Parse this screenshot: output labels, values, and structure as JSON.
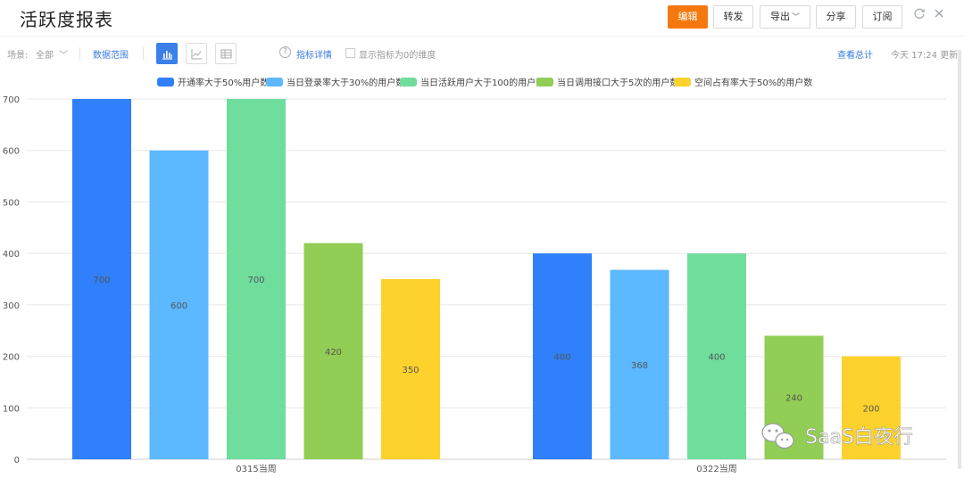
{
  "header": {
    "title": "活跃度报表",
    "buttons": {
      "edit": "编辑",
      "forward": "转发",
      "export": "导出",
      "share": "分享",
      "subscribe": "订阅"
    },
    "icons": [
      "refresh-icon",
      "close-icon"
    ],
    "accent_color": "#f5780f"
  },
  "toolbar": {
    "scene_label": "场景:",
    "scene_value": "全部",
    "data_range": "数据范围",
    "metric_detail": "指标详情",
    "show_zero": "显示指标为0的维度",
    "view_total": "查看总计",
    "updated": "今天 17:24 更新",
    "view_modes": [
      "bar-chart-icon",
      "line-chart-icon",
      "table-icon"
    ],
    "active_view": "bar"
  },
  "chart_data": {
    "type": "bar",
    "categories": [
      "0315当周",
      "0322当周"
    ],
    "series": [
      {
        "name": "开通率大于50%用户数",
        "color": "#2f80fa",
        "values": [
          700,
          400
        ]
      },
      {
        "name": "当日登录率大于30%的用户数",
        "color": "#5cb8ff",
        "values": [
          600,
          368
        ]
      },
      {
        "name": "当日活跃用户大于100的用户数",
        "color": "#6fdd9c",
        "values": [
          700,
          400
        ]
      },
      {
        "name": "当日调用接口大于5次的用户数",
        "color": "#92cd55",
        "values": [
          420,
          240
        ]
      },
      {
        "name": "空间占有率大于50%的用户数",
        "color": "#fdd22c",
        "values": [
          350,
          200
        ]
      }
    ],
    "ylim": [
      0,
      700
    ],
    "yticks": [
      0,
      100,
      200,
      300,
      400,
      500,
      600,
      700
    ],
    "legend": "top",
    "grid": true
  },
  "watermark": {
    "text": "SaaS白夜行",
    "icon": "wechat-icon"
  }
}
